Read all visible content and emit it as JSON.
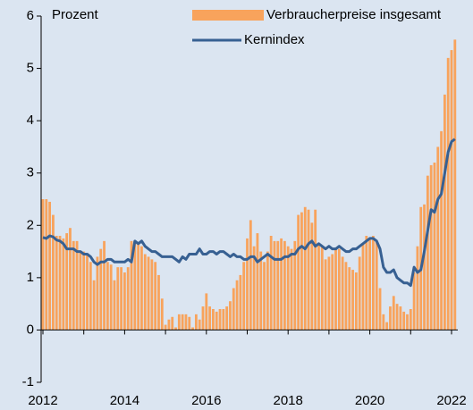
{
  "chart_data": {
    "type": "bar",
    "y_label": "Prozent",
    "categories": [
      "2012",
      null,
      null,
      null,
      null,
      null,
      null,
      null,
      null,
      null,
      null,
      null,
      null,
      null,
      null,
      null,
      null,
      null,
      null,
      null,
      null,
      null,
      null,
      null,
      "2014",
      null,
      null,
      null,
      null,
      null,
      null,
      null,
      null,
      null,
      null,
      null,
      null,
      null,
      null,
      null,
      null,
      null,
      null,
      null,
      null,
      null,
      null,
      null,
      "2016",
      null,
      null,
      null,
      null,
      null,
      null,
      null,
      null,
      null,
      null,
      null,
      null,
      null,
      null,
      null,
      null,
      null,
      null,
      null,
      null,
      null,
      null,
      null,
      "2018",
      null,
      null,
      null,
      null,
      null,
      null,
      null,
      null,
      null,
      null,
      null,
      null,
      null,
      null,
      null,
      null,
      null,
      null,
      null,
      null,
      null,
      null,
      null,
      "2020",
      null,
      null,
      null,
      null,
      null,
      null,
      null,
      null,
      null,
      null,
      null,
      null,
      null,
      null,
      null,
      null,
      null,
      null,
      null,
      null,
      null,
      null,
      null,
      "2022",
      null
    ],
    "series": [
      {
        "name": "Verbraucherpreise insgesamt",
        "type": "bar",
        "color": "#f8a35c",
        "values": [
          2.5,
          2.5,
          2.45,
          2.2,
          1.8,
          1.8,
          1.75,
          1.85,
          1.95,
          1.7,
          1.7,
          1.5,
          1.5,
          1.45,
          1.3,
          0.95,
          1.4,
          1.55,
          1.7,
          1.3,
          1.25,
          0.95,
          1.2,
          1.2,
          1.1,
          1.2,
          1.7,
          1.7,
          1.65,
          1.6,
          1.45,
          1.4,
          1.35,
          1.3,
          1.05,
          0.6,
          0.1,
          0.2,
          0.25,
          0.05,
          0.3,
          0.3,
          0.3,
          0.25,
          0.05,
          0.3,
          0.2,
          0.45,
          0.7,
          0.45,
          0.4,
          0.35,
          0.4,
          0.4,
          0.45,
          0.55,
          0.8,
          0.95,
          1.05,
          1.3,
          1.75,
          2.1,
          1.6,
          1.85,
          1.5,
          1.3,
          1.5,
          1.8,
          1.7,
          1.7,
          1.75,
          1.7,
          1.6,
          1.55,
          1.7,
          2.2,
          2.25,
          2.35,
          2.3,
          2.05,
          2.3,
          1.65,
          1.6,
          1.35,
          1.4,
          1.45,
          1.55,
          1.55,
          1.4,
          1.3,
          1.2,
          1.15,
          1.1,
          1.4,
          1.65,
          1.8,
          1.75,
          1.8,
          1.7,
          0.8,
          0.3,
          0.15,
          0.45,
          0.65,
          0.5,
          0.45,
          0.35,
          0.3,
          0.4,
          1.1,
          1.6,
          2.35,
          2.4,
          2.95,
          3.15,
          3.2,
          3.5,
          3.8,
          4.5,
          5.2,
          5.35,
          5.55
        ]
      },
      {
        "name": "Kernindex",
        "type": "line",
        "color": "#376092",
        "values": [
          1.77,
          1.75,
          1.8,
          1.78,
          1.72,
          1.7,
          1.65,
          1.55,
          1.55,
          1.55,
          1.5,
          1.5,
          1.45,
          1.45,
          1.4,
          1.3,
          1.25,
          1.3,
          1.3,
          1.35,
          1.35,
          1.3,
          1.3,
          1.3,
          1.3,
          1.35,
          1.3,
          1.7,
          1.65,
          1.7,
          1.6,
          1.55,
          1.5,
          1.5,
          1.45,
          1.4,
          1.4,
          1.4,
          1.4,
          1.35,
          1.3,
          1.4,
          1.35,
          1.45,
          1.45,
          1.45,
          1.55,
          1.45,
          1.45,
          1.5,
          1.5,
          1.45,
          1.5,
          1.5,
          1.45,
          1.4,
          1.45,
          1.4,
          1.4,
          1.35,
          1.35,
          1.4,
          1.4,
          1.3,
          1.35,
          1.4,
          1.45,
          1.4,
          1.35,
          1.35,
          1.35,
          1.4,
          1.4,
          1.45,
          1.45,
          1.55,
          1.6,
          1.55,
          1.65,
          1.7,
          1.6,
          1.65,
          1.6,
          1.55,
          1.6,
          1.55,
          1.55,
          1.6,
          1.55,
          1.5,
          1.5,
          1.55,
          1.55,
          1.6,
          1.65,
          1.7,
          1.75,
          1.75,
          1.7,
          1.55,
          1.2,
          1.1,
          1.1,
          1.15,
          1.0,
          0.95,
          0.9,
          0.9,
          0.85,
          1.2,
          1.1,
          1.15,
          1.5,
          1.9,
          2.3,
          2.25,
          2.5,
          2.6,
          3.0,
          3.4,
          3.6,
          3.65
        ]
      }
    ],
    "ylim": [
      -1,
      6
    ],
    "yticks": [
      -1,
      0,
      1,
      2,
      3,
      4,
      5,
      6
    ],
    "grid": false,
    "legend": "top-right"
  }
}
